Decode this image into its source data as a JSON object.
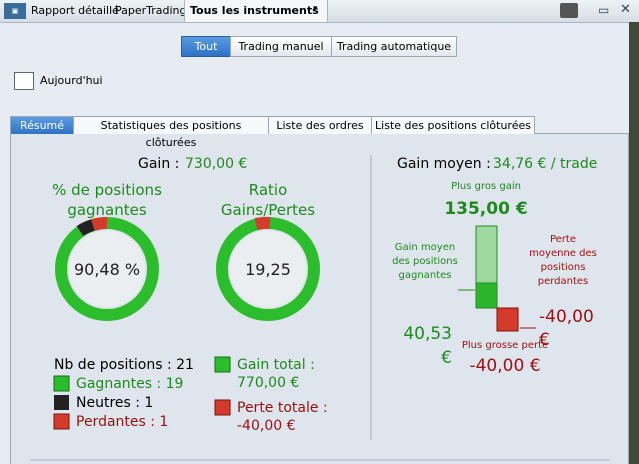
{
  "toolbar": {
    "items": [
      "Rapport détaillé",
      "PaperTrading",
      "Tous les instruments"
    ]
  },
  "mode_buttons": [
    "Tout",
    "Trading manuel",
    "Trading automatique"
  ],
  "date_button": "Aujourd'hui",
  "tabs": [
    "Résumé",
    "Statistiques des positions clôturées",
    "Liste des ordres",
    "Liste des positions clôturées"
  ],
  "summary": {
    "gain": {
      "label": "Gain :",
      "value": "730,00 €"
    },
    "win_rate": {
      "title": "% de positions gagnantes",
      "value": "90,48 %"
    },
    "ratio": {
      "title": "Ratio Gains/Pertes",
      "value": "19,25"
    },
    "counts": {
      "total": "Nb de positions : 21",
      "winners": "Gagnantes : 19",
      "neutral": "Neutres : 1",
      "losers": "Perdantes : 1"
    },
    "totals": {
      "gain_label": "Gain total :",
      "gain_value": "770,00 €",
      "loss_label": "Perte totale :",
      "loss_value": "-40,00 €"
    },
    "average": {
      "label": "Gain moyen :",
      "value": "34,76 € / trade"
    },
    "biggest_gain": {
      "label": "Plus gros gain",
      "value": "135,00 €"
    },
    "avg_win": {
      "label": "Gain moyen des positions gagnantes",
      "value": "40,53 €"
    },
    "avg_loss": {
      "label": "Perte moyenne des positions perdantes",
      "value": "-40,00 €"
    },
    "biggest_loss": {
      "label": "Plus grosse perte",
      "value": "-40,00 €"
    }
  }
}
